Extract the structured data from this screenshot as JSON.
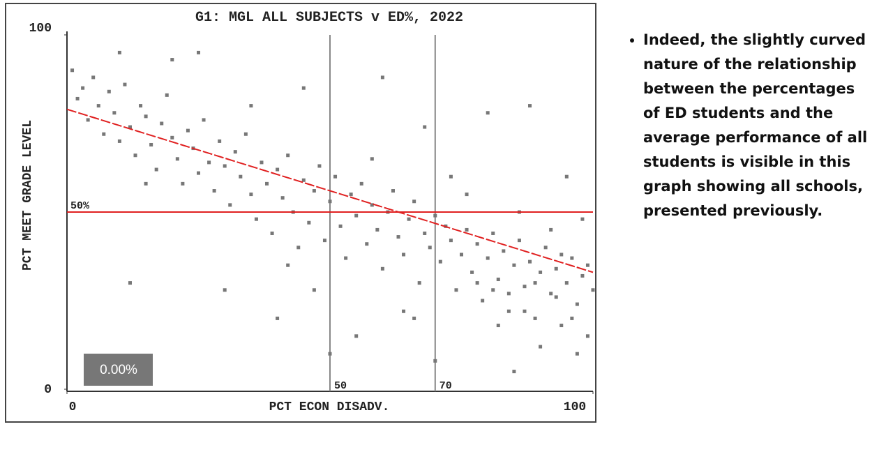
{
  "chart_data": {
    "type": "scatter",
    "title": "G1: MGL ALL SUBJECTS v ED%, 2022",
    "xlabel": "PCT ECON DISADV.",
    "ylabel": "PCT MEET GRADE LEVEL",
    "xlim": [
      0,
      100
    ],
    "ylim": [
      0,
      100
    ],
    "xticks": [
      0,
      100
    ],
    "yticks": [
      0,
      100
    ],
    "series": [
      {
        "color": "#777777",
        "x": [
          1,
          2,
          3,
          4,
          5,
          6,
          7,
          8,
          9,
          10,
          11,
          12,
          13,
          14,
          15,
          16,
          17,
          18,
          19,
          20,
          21,
          22,
          23,
          24,
          25,
          26,
          27,
          28,
          29,
          30,
          31,
          32,
          33,
          34,
          35,
          36,
          37,
          38,
          39,
          40,
          41,
          42,
          43,
          44,
          45,
          46,
          47,
          48,
          49,
          50,
          51,
          52,
          53,
          54,
          55,
          56,
          57,
          58,
          59,
          60,
          61,
          62,
          63,
          64,
          65,
          66,
          67,
          68,
          69,
          70,
          71,
          72,
          73,
          74,
          75,
          76,
          77,
          78,
          79,
          80,
          81,
          82,
          83,
          84,
          85,
          86,
          87,
          88,
          89,
          90,
          91,
          92,
          93,
          94,
          95,
          96,
          97,
          98,
          99,
          100,
          12,
          25,
          45,
          60,
          80,
          88,
          95,
          30,
          50,
          70,
          85,
          40,
          55,
          92,
          98,
          64,
          76,
          86,
          15,
          35,
          20,
          47,
          58,
          73,
          97,
          90,
          82,
          66,
          42,
          10,
          68,
          78,
          93,
          99,
          87,
          81,
          94,
          96,
          89,
          84
        ],
        "y": [
          90,
          82,
          85,
          76,
          88,
          80,
          72,
          84,
          78,
          70,
          86,
          74,
          66,
          80,
          77,
          69,
          62,
          75,
          83,
          71,
          65,
          58,
          73,
          68,
          61,
          76,
          64,
          56,
          70,
          63,
          52,
          67,
          60,
          72,
          55,
          48,
          64,
          58,
          44,
          62,
          54,
          66,
          50,
          40,
          59,
          47,
          56,
          63,
          42,
          53,
          60,
          46,
          37,
          55,
          49,
          58,
          41,
          52,
          45,
          34,
          50,
          56,
          43,
          38,
          48,
          53,
          30,
          44,
          40,
          49,
          36,
          46,
          42,
          28,
          38,
          45,
          33,
          41,
          25,
          37,
          44,
          31,
          39,
          22,
          35,
          42,
          29,
          36,
          20,
          33,
          40,
          27,
          34,
          18,
          30,
          37,
          24,
          32,
          15,
          28,
          30,
          95,
          85,
          88,
          78,
          80,
          60,
          28,
          10,
          8,
          5,
          20,
          15,
          45,
          48,
          22,
          55,
          50,
          58,
          80,
          93,
          28,
          65,
          60,
          10,
          12,
          18,
          20,
          35,
          95,
          74,
          30,
          26,
          35,
          22,
          28,
          38,
          20,
          30,
          27
        ]
      }
    ],
    "trend_line": {
      "color": "#e02020",
      "x": [
        0,
        100
      ],
      "y": [
        79,
        33
      ]
    },
    "hlines": [
      {
        "value": 50,
        "label": "50%",
        "color": "#e02020"
      }
    ],
    "vlines": [
      50,
      70
    ],
    "annotation": "0.00%"
  },
  "sidebar": {
    "bullets": [
      "Indeed, the slightly curved nature of the relationship between the percentages of ED students and the average performance of all students is visible in this graph showing all schools, presented previously."
    ]
  }
}
